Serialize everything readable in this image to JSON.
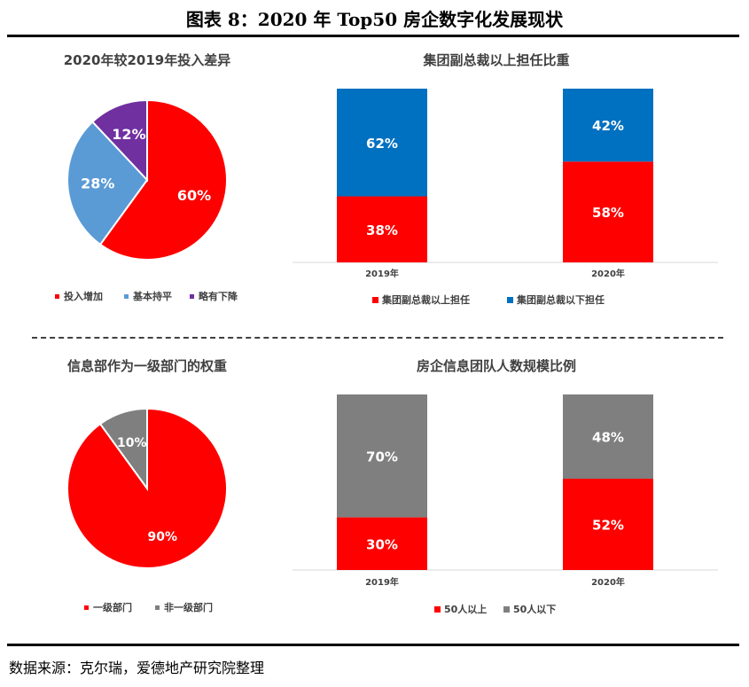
{
  "figure": {
    "title": "图表 8：2020 年 Top50 房企数字化发展现状",
    "source": "数据来源：克尔瑞，爱德地产研究院整理"
  },
  "chart_data": [
    {
      "type": "pie",
      "title": "2020年较2019年投入差异",
      "labels": [
        "投入增加",
        "基本持平",
        "略有下降"
      ],
      "values": [
        60,
        28,
        12
      ],
      "unit": "%",
      "colors": [
        "#ff0000",
        "#5b9bd5",
        "#7030a0"
      ],
      "legend": "bottom"
    },
    {
      "type": "bar",
      "stacked": true,
      "percent": true,
      "title": "集团副总裁以上担任比重",
      "categories": [
        "2019年",
        "2020年"
      ],
      "series": [
        {
          "name": "集团副总裁以上担任",
          "values": [
            38,
            58
          ],
          "color": "#ff0000"
        },
        {
          "name": "集团副总裁以下担任",
          "values": [
            62,
            42
          ],
          "color": "#0070c0"
        }
      ],
      "ylim": [
        0,
        100
      ],
      "legend": "bottom"
    },
    {
      "type": "pie",
      "title": "信息部作为一级部门的权重",
      "labels": [
        "一级部门",
        "非一级部门"
      ],
      "values": [
        90,
        10
      ],
      "unit": "%",
      "colors": [
        "#ff0000",
        "#7f7f7f"
      ],
      "legend": "bottom"
    },
    {
      "type": "bar",
      "stacked": true,
      "percent": true,
      "title": "房企信息团队人数规模比例",
      "categories": [
        "2019年",
        "2020年"
      ],
      "series": [
        {
          "name": "50人以上",
          "values": [
            30,
            52
          ],
          "color": "#ff0000"
        },
        {
          "name": "50人以下",
          "values": [
            70,
            48
          ],
          "color": "#7f7f7f"
        }
      ],
      "ylim": [
        0,
        100
      ],
      "legend": "bottom"
    }
  ]
}
